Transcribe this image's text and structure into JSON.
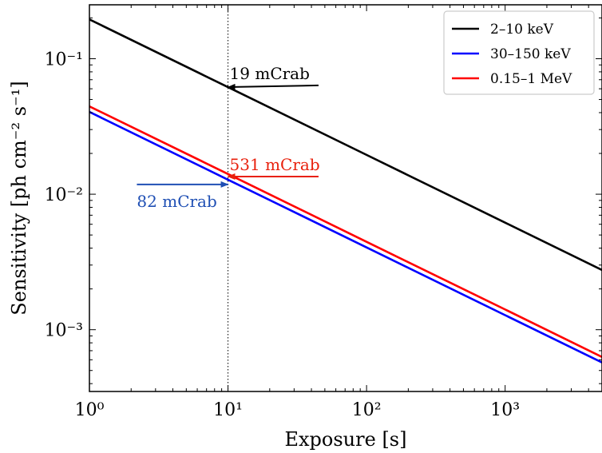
{
  "chart_data": {
    "type": "line",
    "xscale": "log",
    "yscale": "log",
    "xlim": [
      1,
      5000
    ],
    "ylim": [
      0.00035,
      0.25
    ],
    "xlabel": "Exposure [s]",
    "ylabel": "Sensitivity [ph cm⁻² s⁻¹]",
    "xticks": [
      {
        "value": 1,
        "label": "10⁰"
      },
      {
        "value": 10,
        "label": "10¹"
      },
      {
        "value": 100,
        "label": "10²"
      },
      {
        "value": 1000,
        "label": "10³"
      }
    ],
    "yticks": [
      {
        "value": 0.001,
        "label": "10⁻³"
      },
      {
        "value": 0.01,
        "label": "10⁻²"
      },
      {
        "value": 0.1,
        "label": "10⁻¹"
      }
    ],
    "series": [
      {
        "name": "2–10 keV",
        "color": "#000000",
        "x": [
          1,
          10,
          100,
          1000,
          5000
        ],
        "y": [
          0.195,
          0.0617,
          0.0195,
          0.00617,
          0.00276
        ]
      },
      {
        "name": "30–150 keV",
        "color": "#0000ff",
        "x": [
          1,
          10,
          100,
          1000,
          5000
        ],
        "y": [
          0.0405,
          0.0128,
          0.00405,
          0.00128,
          0.000573
        ]
      },
      {
        "name": "0.15–1 MeV",
        "color": "#ff0000",
        "x": [
          1,
          10,
          100,
          1000,
          5000
        ],
        "y": [
          0.0445,
          0.0141,
          0.00445,
          0.00141,
          0.000629
        ]
      }
    ],
    "vline": {
      "x": 10,
      "style": "dotted"
    },
    "annotations": [
      {
        "text": "19 mCrab",
        "color": "#000000",
        "arrow_from": [
          45,
          0.0635
        ],
        "arrow_to": [
          10,
          0.0617
        ],
        "direction": "left"
      },
      {
        "text": "531 mCrab",
        "color": "#e8200c",
        "arrow_from": [
          45,
          0.0135
        ],
        "arrow_to": [
          10,
          0.0135
        ],
        "direction": "left"
      },
      {
        "text": "82 mCrab",
        "color": "#1f4fb4",
        "arrow_from": [
          2.2,
          0.0118
        ],
        "arrow_to": [
          10,
          0.0118
        ],
        "direction": "right"
      }
    ],
    "legend": {
      "position": "top-right"
    },
    "grid": false
  }
}
